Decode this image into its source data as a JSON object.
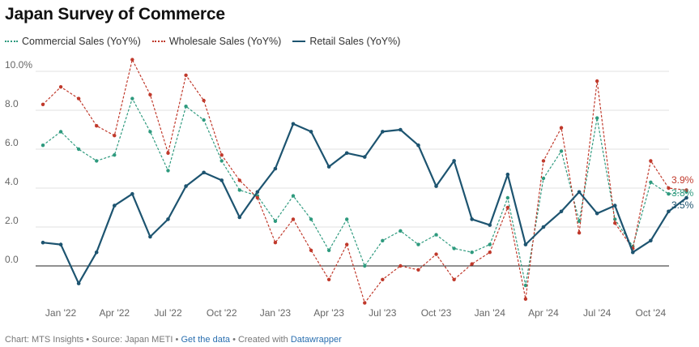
{
  "header": {
    "title": "Japan Survey of Commerce"
  },
  "legend": [
    {
      "name": "Commercial Sales (YoY%)"
    },
    {
      "name": "Wholesale Sales (YoY%)"
    },
    {
      "name": "Retail Sales (YoY%)"
    }
  ],
  "footer": {
    "chart_text": "Chart: MTS Insights",
    "source_text": "Source: Japan METI",
    "get_data_link": "Get the data",
    "created_text": "Created with",
    "created_link": "Datawrapper"
  },
  "colors": {
    "commercial": "#2e9a7e",
    "wholesale": "#c0392b",
    "retail": "#1d5470"
  },
  "chart_data": {
    "type": "line",
    "title": "Japan Survey of Commerce",
    "x": [
      "2021-12",
      "2022-01",
      "2022-02",
      "2022-03",
      "2022-04",
      "2022-05",
      "2022-06",
      "2022-07",
      "2022-08",
      "2022-09",
      "2022-10",
      "2022-11",
      "2022-12",
      "2023-01",
      "2023-02",
      "2023-03",
      "2023-04",
      "2023-05",
      "2023-06",
      "2023-07",
      "2023-08",
      "2023-09",
      "2023-10",
      "2023-11",
      "2023-12",
      "2024-01",
      "2024-02",
      "2024-03",
      "2024-04",
      "2024-05",
      "2024-06",
      "2024-07",
      "2024-08",
      "2024-09",
      "2024-10",
      "2024-11",
      "2024-12"
    ],
    "x_ticks": [
      "Jan '22",
      "Apr '22",
      "Jul '22",
      "Oct '22",
      "Jan '23",
      "Apr '23",
      "Jul '23",
      "Oct '23",
      "Jan '24",
      "Apr '24",
      "Jul '24",
      "Oct '24"
    ],
    "y_ticks": [
      "10.0%",
      "8.0",
      "6.0",
      "4.0",
      "2.0",
      "0.0"
    ],
    "ylim": [
      -2,
      10
    ],
    "grid": true,
    "legend_position": "top-left",
    "series": [
      {
        "name": "Commercial Sales (YoY%)",
        "style": "dotted",
        "values": [
          6.2,
          6.9,
          6.0,
          5.4,
          5.7,
          8.6,
          6.9,
          4.9,
          8.2,
          7.5,
          5.4,
          3.9,
          3.6,
          2.3,
          3.6,
          2.4,
          0.8,
          2.4,
          0.0,
          1.3,
          1.8,
          1.1,
          1.6,
          0.9,
          0.7,
          1.1,
          3.5,
          -1.0,
          4.5,
          5.9,
          2.3,
          7.6,
          2.4,
          1.0,
          4.3,
          3.7,
          3.8
        ],
        "end_label": "3.8%"
      },
      {
        "name": "Wholesale Sales (YoY%)",
        "style": "dotted",
        "values": [
          8.3,
          9.2,
          8.6,
          7.2,
          6.7,
          10.6,
          8.8,
          5.8,
          9.8,
          8.5,
          5.7,
          4.4,
          3.5,
          1.2,
          2.4,
          0.8,
          -0.7,
          1.1,
          -1.9,
          -0.7,
          0.0,
          -0.2,
          0.6,
          -0.7,
          0.1,
          0.7,
          3.0,
          -1.7,
          5.4,
          7.1,
          1.7,
          9.5,
          2.2,
          0.9,
          5.4,
          4.0,
          3.9
        ],
        "end_label": "3.9%"
      },
      {
        "name": "Retail Sales (YoY%)",
        "style": "solid",
        "values": [
          1.2,
          1.1,
          -0.9,
          0.7,
          3.1,
          3.7,
          1.5,
          2.4,
          4.1,
          4.8,
          4.4,
          2.5,
          3.8,
          5.0,
          7.3,
          6.9,
          5.1,
          5.8,
          5.6,
          6.9,
          7.0,
          6.2,
          4.1,
          5.4,
          2.4,
          2.1,
          4.7,
          1.1,
          2.0,
          2.8,
          3.8,
          2.7,
          3.1,
          0.7,
          1.3,
          2.8,
          3.5
        ],
        "end_label": "3.5%"
      }
    ]
  }
}
